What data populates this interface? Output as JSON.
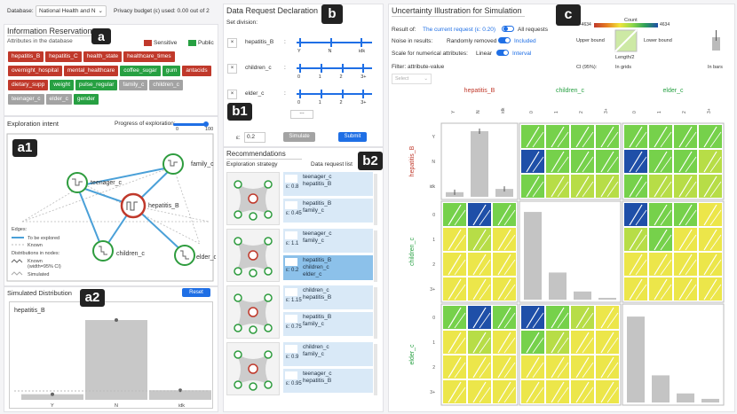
{
  "top": {
    "database_label": "Database:",
    "database_value": "National Health and N",
    "budget": "Privacy budget (ε) used: 0.00 out of 2"
  },
  "labels": {
    "a": "a",
    "a1": "a1",
    "a2": "a2",
    "b": "b",
    "b1": "b1",
    "b2": "b2",
    "c": "c"
  },
  "info": {
    "title": "Information Reservation",
    "attrs_title": "Attributes in the database",
    "legend_sensitive": "Sensitive",
    "legend_public": "Public",
    "tags": [
      {
        "t": "hepatitis_B",
        "c": "red"
      },
      {
        "t": "hepatitis_C",
        "c": "red"
      },
      {
        "t": "health_state",
        "c": "red"
      },
      {
        "t": "healthcare_times",
        "c": "red"
      },
      {
        "t": "overnight_hospital",
        "c": "red"
      },
      {
        "t": "mental_healthcare",
        "c": "red"
      },
      {
        "t": "coffee_sugar",
        "c": "grn"
      },
      {
        "t": "gum",
        "c": "grn"
      },
      {
        "t": "antacids",
        "c": "red"
      },
      {
        "t": "dietary_supp",
        "c": "red"
      },
      {
        "t": "weight",
        "c": "grn"
      },
      {
        "t": "pulse_regular",
        "c": "grn"
      },
      {
        "t": "family_c",
        "c": "gry"
      },
      {
        "t": "children_c",
        "c": "gry"
      },
      {
        "t": "teenager_c",
        "c": "gry"
      },
      {
        "t": "elder_c",
        "c": "gry"
      },
      {
        "t": "gender",
        "c": "grn"
      }
    ]
  },
  "exploration": {
    "title": "Exploration intent",
    "progress_label": "Progress of exploration:",
    "progress": 0.92,
    "min": "0",
    "max": "100",
    "nodes": {
      "center": "hepatitis_B",
      "teen": "teenager_c",
      "family": "family_c",
      "children": "children_c",
      "elder": "elder_c"
    },
    "legend": {
      "edges": "Edges:",
      "explored": "To be explored",
      "known": "Known",
      "dist": "Distributions in nodes:",
      "known_dist": "Known",
      "known_dist2": "(width=95% CI)",
      "simulated": "Simulated"
    }
  },
  "simdist": {
    "title": "Simulated Distribution",
    "reset": "Reset",
    "var": "hepatitis_B",
    "cats": [
      "Y",
      "N",
      "idk"
    ],
    "values": [
      0.07,
      1.0,
      0.12
    ]
  },
  "request": {
    "title": "Data Request Declaration",
    "set_division": "Set division:",
    "sliders": [
      {
        "name": "hepatitis_B",
        "ticks": [
          "Y",
          "N",
          "idk"
        ]
      },
      {
        "name": "children_c",
        "ticks": [
          "0",
          "1",
          "2",
          "3+"
        ]
      },
      {
        "name": "elder_c",
        "ticks": [
          "0",
          "1",
          "2",
          "3+"
        ]
      }
    ],
    "epsilon_label": "ε:",
    "epsilon": "0.2",
    "simulate": "Simulate",
    "submit": "Submit"
  },
  "recs": {
    "title": "Recommendations",
    "col1": "Exploration strategy",
    "col2": "Data request list",
    "groups": [
      {
        "items": [
          {
            "eps": "ε: 0.8",
            "lines": [
              "teenager_c",
              "hepatitis_B"
            ],
            "sel": false
          },
          {
            "eps": "ε: 0.45",
            "lines": [
              "hepatitis_B",
              "family_c"
            ],
            "sel": false
          }
        ]
      },
      {
        "items": [
          {
            "eps": "ε: 1.1",
            "lines": [
              "teenager_c",
              "family_c"
            ],
            "sel": false
          },
          {
            "eps": "ε: 0.2",
            "lines": [
              "hepatitis_B",
              "children_c",
              "elder_c"
            ],
            "sel": true
          }
        ]
      },
      {
        "items": [
          {
            "eps": "ε: 1.15",
            "lines": [
              "children_c",
              "hepatitis_B"
            ],
            "sel": false
          },
          {
            "eps": "ε: 0.75",
            "lines": [
              "hepatitis_B",
              "family_c"
            ],
            "sel": false
          }
        ]
      },
      {
        "items": [
          {
            "eps": "ε: 0.9",
            "lines": [
              "children_c",
              "family_c"
            ],
            "sel": false
          },
          {
            "eps": "ε: 0.95",
            "lines": [
              "teenager_c",
              "hepatitis_B"
            ],
            "sel": false
          }
        ]
      }
    ]
  },
  "uncert": {
    "title": "Uncertainty Illustration for Simulation",
    "result_of": "Result of:",
    "current": "The current request (ε: 0.20)",
    "all": "All requests",
    "noise": "Noise in results:",
    "removed": "Randomly removed",
    "included": "Included",
    "scale": "Scale for numerical attributes:",
    "linear": "Linear",
    "interval": "Interval",
    "filter": "Filter: attribute-value",
    "select": "Select",
    "count": "Count",
    "cmin": "-4634",
    "cmax": "4634",
    "upper": "Upper bound",
    "lower": "Lower bound",
    "length": "Length/2",
    "ci": "CI (95%):",
    "in_grids": "In grids",
    "in_bars": "In bars",
    "vars": [
      "hepatitis_B",
      "children_c",
      "elder_c"
    ],
    "var_colors": [
      "#c0392b",
      "#27a042",
      "#27a042"
    ],
    "ticks": [
      [
        "Y",
        "N",
        "idk"
      ],
      [
        "0",
        "1",
        "2",
        "3+"
      ],
      [
        "0",
        "1",
        "2",
        "3+"
      ]
    ],
    "hist_hep": [
      0.07,
      1.0,
      0.12
    ],
    "hist_child": [
      0.97,
      0.3,
      0.09,
      0.02
    ],
    "hist_elder": [
      0.95,
      0.3,
      0.1,
      0.04
    ]
  }
}
